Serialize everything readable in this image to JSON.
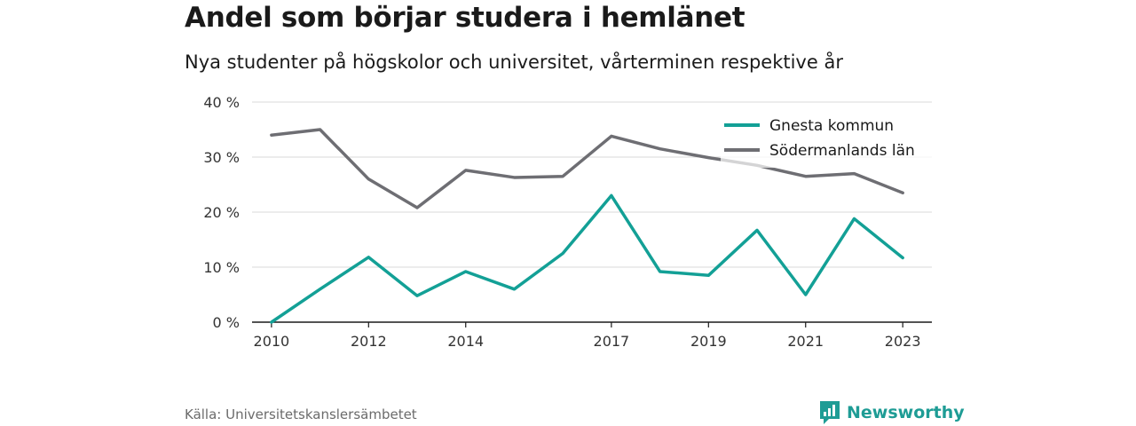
{
  "title": "Andel som börjar studera i hemlänet",
  "subtitle": "Nya studenter på högskolor och universitet, vårterminen respektive år",
  "source": "Källa: Universitetskanslersämbetet",
  "brand": {
    "name": "Newsworthy",
    "icon": "newsworthy-logo-icon",
    "color": "#1e9c95"
  },
  "chart_data": {
    "type": "line",
    "x": [
      2010,
      2011,
      2012,
      2013,
      2014,
      2015,
      2016,
      2017,
      2018,
      2019,
      2020,
      2021,
      2022,
      2023
    ],
    "x_tick_values": [
      2010,
      2012,
      2014,
      2017,
      2019,
      2021,
      2023
    ],
    "x_tick_labels": [
      "2010",
      "2012",
      "2014",
      "2017",
      "2019",
      "2021",
      "2023"
    ],
    "y_tick_values": [
      0,
      10,
      20,
      30,
      40
    ],
    "y_tick_labels": [
      "0 %",
      "10 %",
      "20 %",
      "30 %",
      "40 %"
    ],
    "ylim": [
      0,
      40
    ],
    "xlim": [
      2009.6,
      2023.6
    ],
    "grid": true,
    "legend_position": "top-right",
    "series": [
      {
        "name": "Gnesta kommun",
        "color": "#13a096",
        "values": [
          0,
          6,
          11.8,
          4.8,
          9.2,
          6,
          12.5,
          23,
          9.2,
          8.5,
          16.7,
          5,
          18.8,
          11.7
        ]
      },
      {
        "name": "Södermanlands län",
        "color": "#6e6e73",
        "values": [
          34,
          35,
          26,
          20.8,
          27.6,
          26.3,
          26.5,
          33.8,
          31.5,
          29.9,
          28.5,
          26.5,
          27,
          23.5
        ]
      }
    ]
  }
}
